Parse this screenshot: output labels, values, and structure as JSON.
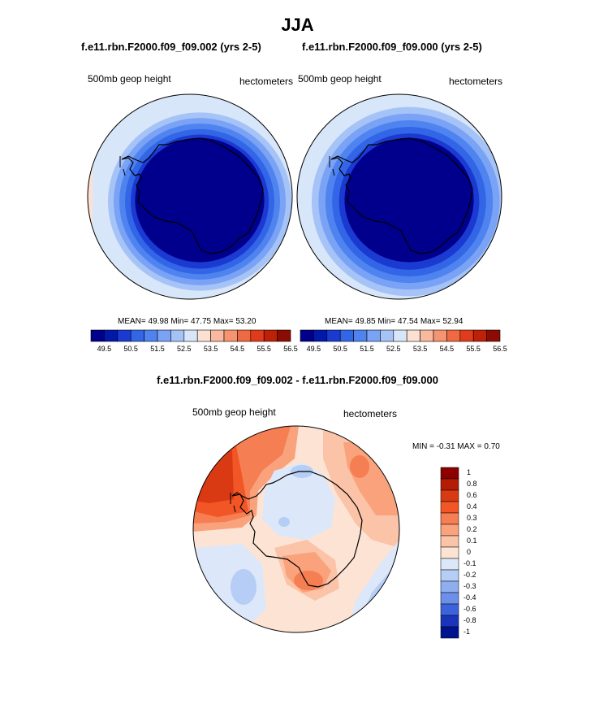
{
  "title": "JJA",
  "chart_data": [
    {
      "type": "heatmap",
      "projection": "south polar stereographic",
      "case_title": "f.e11.rbn.F2000.f09_f09.002 (yrs 2-5)",
      "left_label": "500mb geop height",
      "right_label": "hectometers",
      "stats_text": "MEAN=  49.98  Min=  47.75  Max=  53.20",
      "stats": {
        "mean": 49.98,
        "min": 47.75,
        "max": 53.2
      },
      "band_values": [
        50.5,
        51.0,
        51.5,
        52.0,
        52.5,
        53.0
      ],
      "colorbar_ticks": [
        "49.5",
        "50.5",
        "51.5",
        "52.5",
        "53.5",
        "54.5",
        "55.5",
        "56.5"
      ],
      "colorbar_levels": [
        49.5,
        50.0,
        50.5,
        51.0,
        51.5,
        52.0,
        52.5,
        53.0,
        53.5,
        54.0,
        54.5,
        55.0,
        55.5,
        56.0,
        56.5
      ]
    },
    {
      "type": "heatmap",
      "projection": "south polar stereographic",
      "case_title": "f.e11.rbn.F2000.f09_f09.000 (yrs 2-5)",
      "left_label": "500mb geop height",
      "right_label": "hectometers",
      "stats_text": "MEAN=  49.85  Min=  47.54  Max=  52.94",
      "stats": {
        "mean": 49.85,
        "min": 47.54,
        "max": 52.94
      },
      "band_values": [
        50.5,
        51.0,
        51.5,
        52.0,
        52.5
      ],
      "colorbar_ticks": [
        "49.5",
        "50.5",
        "51.5",
        "52.5",
        "53.5",
        "54.5",
        "55.5",
        "56.5"
      ],
      "colorbar_levels": [
        49.5,
        50.0,
        50.5,
        51.0,
        51.5,
        52.0,
        52.5,
        53.0,
        53.5,
        54.0,
        54.5,
        55.0,
        55.5,
        56.0,
        56.5
      ]
    },
    {
      "type": "heatmap",
      "projection": "south polar stereographic",
      "case_title": "f.e11.rbn.F2000.f09_f09.002 - f.e11.rbn.F2000.f09_f09.000",
      "left_label": "500mb geop height",
      "right_label": "hectometers",
      "stats_text": "MIN =  -0.31 MAX =   0.70",
      "stats": {
        "min": -0.31,
        "max": 0.7
      },
      "colorbar_ticks": [
        "1",
        "0.8",
        "0.6",
        "0.4",
        "0.3",
        "0.2",
        "0.1",
        "0",
        "-0.1",
        "-0.2",
        "-0.3",
        "-0.4",
        "-0.6",
        "-0.8",
        "-1"
      ],
      "colorbar_levels": [
        1,
        0.8,
        0.6,
        0.4,
        0.3,
        0.2,
        0.1,
        0,
        -0.1,
        -0.2,
        -0.3,
        -0.4,
        -0.6,
        -0.8,
        -1
      ]
    }
  ],
  "colors": {
    "abs_scale": [
      "#00008c",
      "#0019a8",
      "#1a3ad2",
      "#3366e6",
      "#4f84f0",
      "#7aa3f5",
      "#a6c3f7",
      "#d7e6f9",
      "#fbe0d3",
      "#f9b99e",
      "#f5956f",
      "#ef6a43",
      "#e23b1b",
      "#bd2108",
      "#8c0b03"
    ],
    "diff_scale": [
      "#8c0000",
      "#b51c05",
      "#d93a14",
      "#f25526",
      "#f57e52",
      "#f9a27c",
      "#fbc3a8",
      "#fde3d4",
      "#dce8f9",
      "#b6cdf5",
      "#8eaef0",
      "#6c90e9",
      "#3c63dc",
      "#1a35bc",
      "#00138f"
    ]
  }
}
